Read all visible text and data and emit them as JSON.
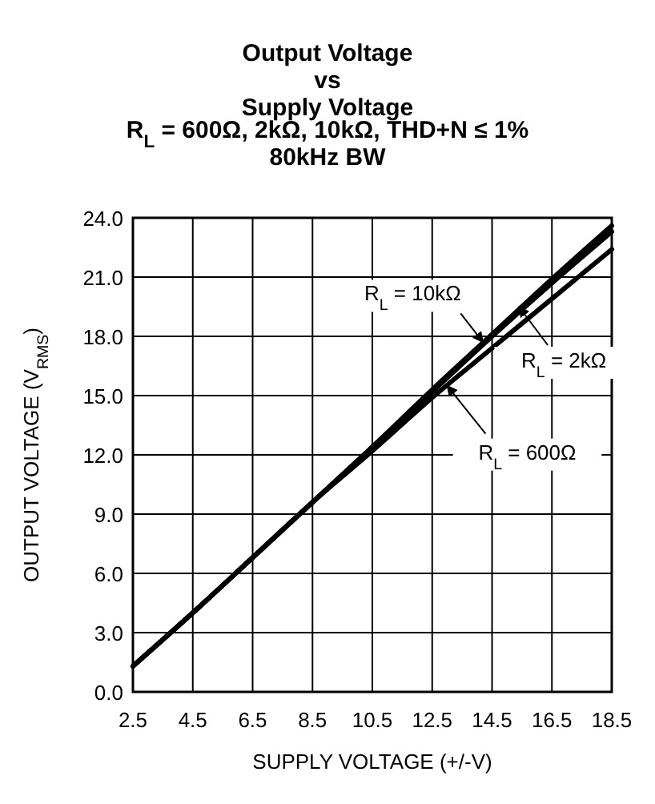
{
  "chart_data": {
    "type": "line",
    "title": "Output Voltage\nvs\nSupply Voltage\nR$_{L}$ = 600Ω, 2kΩ, 10kΩ, THD+N ≤ 1%\n80kHz BW",
    "xlabel": "SUPPLY VOLTAGE (+/-V)",
    "ylabel": "OUTPUT VOLTAGE (V$_{RMS}$)",
    "x": [
      2.5,
      4.5,
      6.5,
      8.5,
      10.5,
      12.5,
      14.5,
      16.5,
      18.5
    ],
    "series": [
      {
        "color": "#000000",
        "values": [
          1.3,
          4.0,
          6.8,
          9.6,
          12.4,
          15.3,
          18.1,
          20.9,
          23.6
        ]
      },
      {
        "color": "#000000",
        "values": [
          1.3,
          4.0,
          6.8,
          9.6,
          12.4,
          15.2,
          18.0,
          20.7,
          23.3
        ]
      },
      {
        "color": "#000000",
        "values": [
          1.3,
          4.0,
          6.8,
          9.6,
          12.2,
          14.9,
          17.4,
          19.9,
          22.4
        ]
      }
    ],
    "xlim": [
      2.5,
      18.5
    ],
    "xticks": [
      2.5,
      4.5,
      6.5,
      8.5,
      10.5,
      12.5,
      14.5,
      16.5,
      18.5
    ],
    "ylim": [
      0,
      24
    ],
    "yticks": [
      {
        "value": 0,
        "label": "0.0"
      },
      {
        "value": 3,
        "label": "3.0"
      },
      {
        "value": 6,
        "label": "6.0"
      },
      {
        "value": 9,
        "label": "9.0"
      },
      {
        "value": 12,
        "label": "12.0"
      },
      {
        "value": 15,
        "label": "15.0"
      },
      {
        "value": 18,
        "label": "18.0"
      },
      {
        "value": 21,
        "label": "21.0"
      },
      {
        "value": 24,
        "label": "24.0"
      }
    ],
    "grid": true,
    "marker": "none",
    "line_style": "solid",
    "annotations": [
      {
        "text": "R$_{L}$ = 10kΩ",
        "x": 14.2,
        "y": 17.7
      },
      {
        "text": "R$_{L}$ = 2kΩ",
        "x": 15.4,
        "y": 19.5
      },
      {
        "text": "R$_{L}$ = 600Ω",
        "x": 13.0,
        "y": 15.5
      }
    ]
  }
}
